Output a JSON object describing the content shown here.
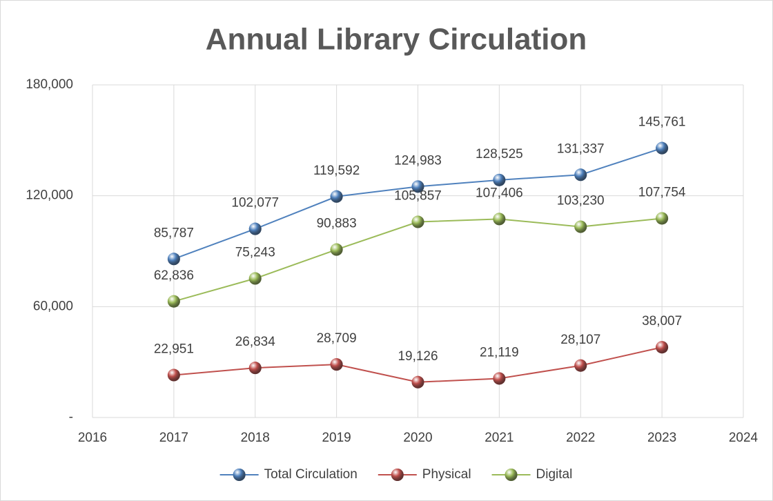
{
  "chart_data": {
    "type": "line",
    "title": "Annual Library Circulation",
    "x": [
      2017,
      2018,
      2019,
      2020,
      2021,
      2022,
      2023
    ],
    "xlim": [
      2016,
      2024
    ],
    "xticks": [
      2016,
      2017,
      2018,
      2019,
      2020,
      2021,
      2022,
      2023,
      2024
    ],
    "ylim": [
      0,
      180000
    ],
    "yticks": [
      {
        "value": 0,
        "label": "-"
      },
      {
        "value": 60000,
        "label": "60,000"
      },
      {
        "value": 120000,
        "label": "120,000"
      },
      {
        "value": 180000,
        "label": "180,000"
      }
    ],
    "grid": true,
    "legend": "bottom",
    "series": [
      {
        "name": "Total Circulation",
        "color": "#4f81bd",
        "values": [
          85787,
          102077,
          119592,
          124983,
          128525,
          131337,
          145761
        ],
        "value_labels": [
          "85,787",
          "102,077",
          "119,592",
          "124,983",
          "128,525",
          "131,337",
          "145,761"
        ]
      },
      {
        "name": "Physical",
        "color": "#c0504d",
        "values": [
          22951,
          26834,
          28709,
          19126,
          21119,
          28107,
          38007
        ],
        "value_labels": [
          "22,951",
          "26,834",
          "28,709",
          "19,126",
          "21,119",
          "28,107",
          "38,007"
        ]
      },
      {
        "name": "Digital",
        "color": "#9bbb59",
        "values": [
          62836,
          75243,
          90883,
          105857,
          107406,
          103230,
          107754
        ],
        "value_labels": [
          "62,836",
          "75,243",
          "90,883",
          "105,857",
          "107,406",
          "103,230",
          "107,754"
        ]
      }
    ]
  }
}
